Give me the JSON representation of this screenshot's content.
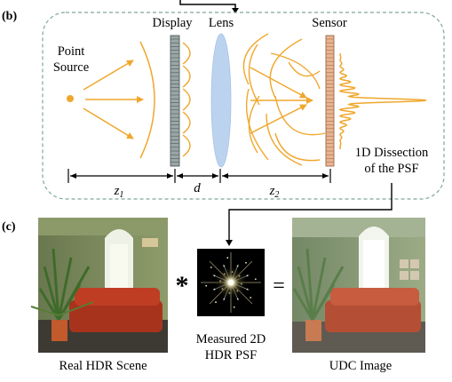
{
  "panel_b": {
    "tag": "(b)",
    "point_source_line1": "Point",
    "point_source_line2": "Source",
    "display_label": "Display",
    "lens_label": "Lens",
    "sensor_label": "Sensor",
    "dissection_line1": "1D Dissection",
    "dissection_line2": "of the PSF",
    "dim_z1": "z",
    "dim_z1_sub": "1",
    "dim_d": "d",
    "dim_z2": "z",
    "dim_z2_sub": "2"
  },
  "panel_c": {
    "tag": "(c)",
    "convolution_symbol": "*",
    "equals_symbol": "=",
    "psf_caption_line1": "Measured 2D",
    "psf_caption_line2": "HDR PSF",
    "scene_caption": "Real HDR Scene",
    "udc_caption": "UDC Image"
  },
  "colors": {
    "ray": "#f0a72c",
    "panel_border": "#7fa89a",
    "display_fill": "#9aa7a6",
    "lens_fill": "#bcd3ef",
    "sensor_fill": "#e9b492"
  }
}
